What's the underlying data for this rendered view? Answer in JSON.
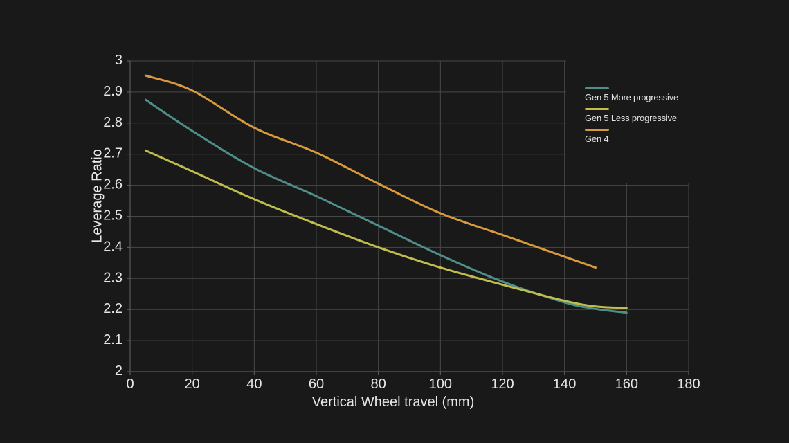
{
  "chart_data": {
    "type": "line",
    "title": "",
    "xlabel": "Vertical Wheel travel (mm)",
    "ylabel": "Leverage Ratio",
    "xlim": [
      0,
      180
    ],
    "ylim": [
      2,
      3
    ],
    "xticks": [
      0,
      20,
      40,
      60,
      80,
      100,
      120,
      140,
      160,
      180
    ],
    "yticks": [
      2,
      2.1,
      2.2,
      2.3,
      2.4,
      2.5,
      2.6,
      2.7,
      2.8,
      2.9,
      3
    ],
    "grid": true,
    "legend_position": "top-right",
    "background_color": "#191919",
    "grid_color": "#484848",
    "axis_color": "#5a5a5a",
    "text_color": "#e6e6e6",
    "series": [
      {
        "name": "Gen 5 More progressive",
        "color": "#4f8f8b",
        "x": [
          5,
          20,
          40,
          60,
          80,
          100,
          120,
          140,
          150,
          160
        ],
        "y": [
          2.875,
          2.775,
          2.655,
          2.565,
          2.47,
          2.375,
          2.29,
          2.223,
          2.202,
          2.19
        ]
      },
      {
        "name": "Gen 5 Less progressive",
        "color": "#c1bd4d",
        "x": [
          5,
          20,
          40,
          60,
          80,
          100,
          120,
          140,
          150,
          160
        ],
        "y": [
          2.712,
          2.645,
          2.555,
          2.475,
          2.4,
          2.335,
          2.28,
          2.228,
          2.21,
          2.205
        ]
      },
      {
        "name": "Gen 4",
        "color": "#d99a3d",
        "x": [
          5,
          20,
          40,
          60,
          80,
          100,
          120,
          140,
          150
        ],
        "y": [
          2.953,
          2.905,
          2.785,
          2.705,
          2.605,
          2.51,
          2.44,
          2.37,
          2.335
        ]
      }
    ]
  }
}
